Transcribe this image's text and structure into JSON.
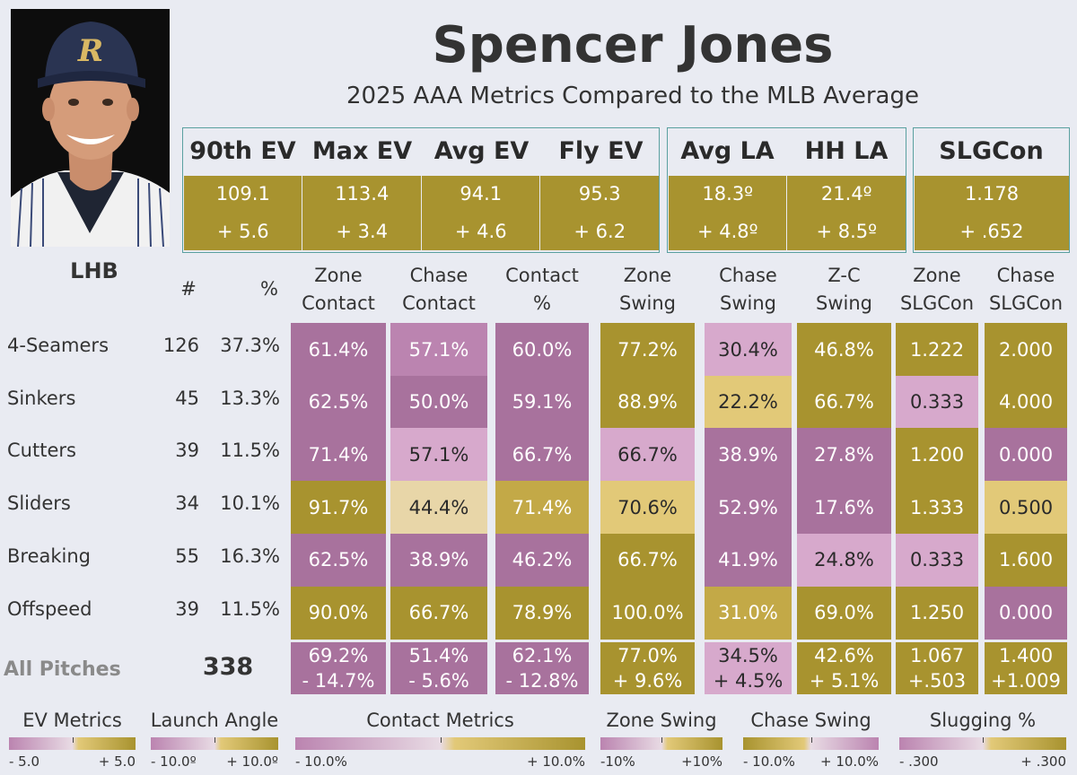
{
  "player": {
    "name": "Spencer Jones",
    "subtitle": "2025 AAA Metrics Compared to the MLB Average",
    "handedness": "LHB"
  },
  "colors": {
    "gold_dark": "#a8932f",
    "gold_mid": "#c3a947",
    "gold_light": "#e2c978",
    "gold_pale": "#e8d6a8",
    "purple_dark": "#a8729d",
    "purple_mid": "#bb84b0",
    "purple_light": "#d7a9cc",
    "background": "#e9ebf2",
    "box_border": "#5aa0a0"
  },
  "ev_box": {
    "headers": [
      "90th EV",
      "Max EV",
      "Avg EV",
      "Fly EV"
    ],
    "values": [
      "109.1",
      "113.4",
      "94.1",
      "95.3"
    ],
    "diffs": [
      "+ 5.6",
      "+ 3.4",
      "+ 4.6",
      "+ 6.2"
    ]
  },
  "la_box": {
    "headers": [
      "Avg LA",
      "HH LA"
    ],
    "values": [
      "18.3º",
      "21.4º"
    ],
    "diffs": [
      "+ 4.8º",
      "+ 8.5º"
    ]
  },
  "slg_box": {
    "headers": [
      "SLGCon"
    ],
    "values": [
      "1.178"
    ],
    "diffs": [
      "+ .652"
    ]
  },
  "table": {
    "count_header": "#",
    "pct_header": "%",
    "columns": [
      [
        "Zone",
        "Contact"
      ],
      [
        "Chase",
        "Contact"
      ],
      [
        "Contact",
        "%"
      ],
      [
        "Zone",
        "Swing"
      ],
      [
        "Chase",
        "Swing"
      ],
      [
        "Z-C",
        "Swing"
      ],
      [
        "Zone",
        "SLGCon"
      ],
      [
        "Chase",
        "SLGCon"
      ]
    ],
    "rows": [
      {
        "pitch": "4-Seamers",
        "count": "126",
        "pct": "37.3%",
        "values": [
          "61.4%",
          "57.1%",
          "60.0%",
          "77.2%",
          "30.4%",
          "46.8%",
          "1.222",
          "2.000"
        ],
        "shades": [
          "pd",
          "pm",
          "pd",
          "gd",
          "pl",
          "gd",
          "gd",
          "gd"
        ]
      },
      {
        "pitch": "Sinkers",
        "count": "45",
        "pct": "13.3%",
        "values": [
          "62.5%",
          "50.0%",
          "59.1%",
          "88.9%",
          "22.2%",
          "66.7%",
          "0.333",
          "4.000"
        ],
        "shades": [
          "pd",
          "pd",
          "pd",
          "gd",
          "gl",
          "gd",
          "pl",
          "gd"
        ]
      },
      {
        "pitch": "Cutters",
        "count": "39",
        "pct": "11.5%",
        "values": [
          "71.4%",
          "57.1%",
          "66.7%",
          "66.7%",
          "38.9%",
          "27.8%",
          "1.200",
          "0.000"
        ],
        "shades": [
          "pd",
          "pl",
          "pd",
          "pl",
          "pd",
          "pd",
          "gd",
          "pd"
        ]
      },
      {
        "pitch": "Sliders",
        "count": "34",
        "pct": "10.1%",
        "values": [
          "91.7%",
          "44.4%",
          "71.4%",
          "70.6%",
          "52.9%",
          "17.6%",
          "1.333",
          "0.500"
        ],
        "shades": [
          "gd",
          "gp",
          "gm",
          "gl",
          "pd",
          "pd",
          "gd",
          "gl"
        ]
      },
      {
        "pitch": "Breaking",
        "count": "55",
        "pct": "16.3%",
        "values": [
          "62.5%",
          "38.9%",
          "46.2%",
          "66.7%",
          "41.9%",
          "24.8%",
          "0.333",
          "1.600"
        ],
        "shades": [
          "pd",
          "pd",
          "pd",
          "gd",
          "pd",
          "pl",
          "pl",
          "gd"
        ]
      },
      {
        "pitch": "Offspeed",
        "count": "39",
        "pct": "11.5%",
        "values": [
          "90.0%",
          "66.7%",
          "78.9%",
          "100.0%",
          "31.0%",
          "69.0%",
          "1.250",
          "0.000"
        ],
        "shades": [
          "gd",
          "gd",
          "gd",
          "gd",
          "gm",
          "gd",
          "gd",
          "pd"
        ]
      }
    ],
    "all_pitches": {
      "label": "All Pitches",
      "count": "338",
      "values": [
        "69.2%",
        "51.4%",
        "62.1%",
        "77.0%",
        "34.5%",
        "42.6%",
        "1.067",
        "1.400"
      ],
      "diffs": [
        "- 14.7%",
        "- 5.6%",
        "- 12.8%",
        "+ 9.6%",
        "+ 4.5%",
        "+ 5.1%",
        "+.503",
        "+1.009"
      ],
      "shades": [
        "pd",
        "pd",
        "pd",
        "gd",
        "pl",
        "gd",
        "gd",
        "gd"
      ]
    }
  },
  "legends": [
    {
      "title": "EV Metrics",
      "low": "- 5.0",
      "high": "+ 5.0"
    },
    {
      "title": "Launch Angle",
      "low": "- 10.0º",
      "high": "+ 10.0º"
    },
    {
      "title": "Contact Metrics",
      "low": "- 10.0%",
      "high": "+ 10.0%"
    },
    {
      "title": "Zone Swing",
      "low": "-10%",
      "high": "+10%"
    },
    {
      "title": "Chase Swing",
      "low": "- 10.0%",
      "high": "+ 10.0%"
    },
    {
      "title": "Slugging %",
      "low": "- .300",
      "high": "+ .300"
    }
  ]
}
